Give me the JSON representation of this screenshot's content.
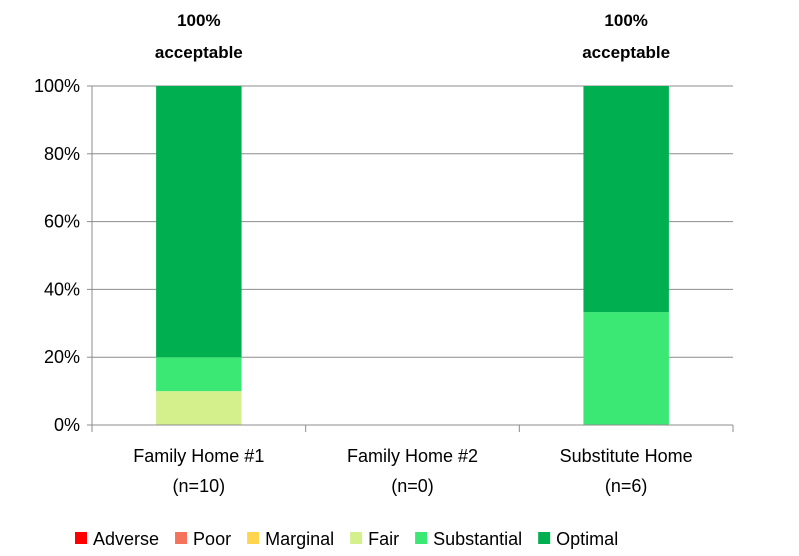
{
  "chart_data": {
    "type": "bar",
    "stacked": true,
    "percent": true,
    "categories": [
      "Family Home #1",
      "Family Home #2",
      "Substitute Home"
    ],
    "category_sublabels": [
      "(n=10)",
      "(n=0)",
      "(n=6)"
    ],
    "annotations": [
      "100%\nacceptable",
      "",
      "100%\nacceptable"
    ],
    "ylim": [
      0,
      100
    ],
    "yticks": [
      "0%",
      "20%",
      "40%",
      "60%",
      "80%",
      "100%"
    ],
    "grid": true,
    "legend_position": "bottom",
    "series": [
      {
        "name": "Adverse",
        "color": "#ff0000",
        "values": [
          0,
          0,
          0
        ]
      },
      {
        "name": "Poor",
        "color": "#f4735a",
        "values": [
          0,
          0,
          0
        ]
      },
      {
        "name": "Marginal",
        "color": "#ffd54f",
        "values": [
          0,
          0,
          0
        ]
      },
      {
        "name": "Fair",
        "color": "#d4f08c",
        "values": [
          10,
          0,
          0
        ]
      },
      {
        "name": "Substantial",
        "color": "#3be874",
        "values": [
          10,
          0,
          33.3
        ]
      },
      {
        "name": "Optimal",
        "color": "#00b050",
        "values": [
          80,
          0,
          66.7
        ]
      }
    ]
  }
}
